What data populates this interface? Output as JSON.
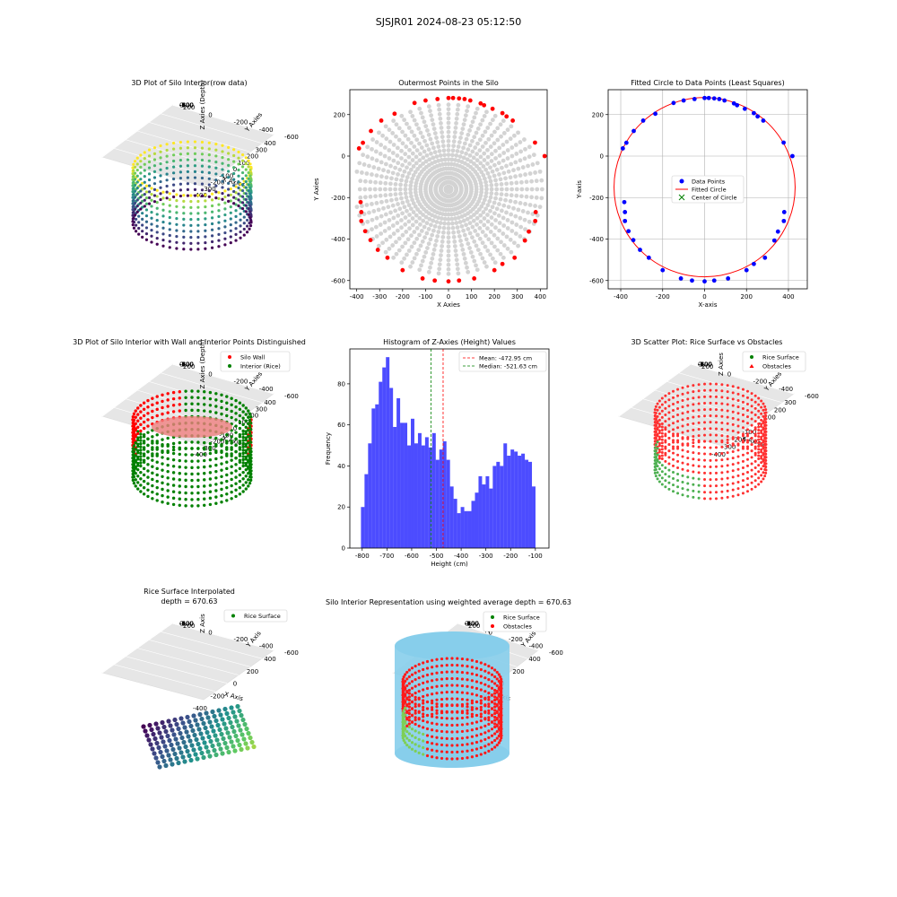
{
  "suptitle": "SJSJR01 2024-08-23 05:12:50",
  "chart_data": [
    {
      "type": "scatter3d",
      "title": "3D Plot of Silo Interior(row data)",
      "xlabel": "X Axies",
      "ylabel": "Y Axies",
      "zlabel": "Z Axies (Depth)",
      "x_ticks": [
        "-400",
        "-300",
        "-200",
        "-100",
        "0",
        "100",
        "200",
        "300",
        "400"
      ],
      "y_ticks": [
        "-600",
        "-400",
        "-200",
        "0",
        "200"
      ],
      "z_ticks": [
        "0",
        "-100",
        "-200",
        "-300",
        "-400",
        "-500",
        "-600",
        "-700",
        "-800"
      ],
      "colormap": "viridis"
    },
    {
      "type": "scatter",
      "title": "Outermost Points in the Silo",
      "xlabel": "X Axies",
      "ylabel": "Y Axies",
      "xlim": [
        -430,
        430
      ],
      "ylim": [
        -640,
        320
      ],
      "x_ticks": [
        -400,
        -300,
        -200,
        -100,
        0,
        100,
        200,
        300,
        400
      ],
      "y_ticks": [
        -600,
        -400,
        -200,
        0,
        200
      ],
      "colors": {
        "interior": "#d3d3d3",
        "outermost": "#ff0000"
      },
      "outermost_points": [
        [
          -390,
          37
        ],
        [
          -373,
          64
        ],
        [
          -338,
          121
        ],
        [
          -293,
          171
        ],
        [
          -235,
          204
        ],
        [
          -148,
          256
        ],
        [
          -100,
          268
        ],
        [
          -48,
          275
        ],
        [
          0,
          280
        ],
        [
          20,
          280
        ],
        [
          46,
          278
        ],
        [
          70,
          275
        ],
        [
          95,
          268
        ],
        [
          140,
          254
        ],
        [
          155,
          245
        ],
        [
          192,
          228
        ],
        [
          235,
          207
        ],
        [
          253,
          191
        ],
        [
          280,
          171
        ],
        [
          377,
          65
        ],
        [
          419,
          0
        ],
        [
          -383,
          -222
        ],
        [
          -380,
          -270
        ],
        [
          -380,
          -313
        ],
        [
          -363,
          -362
        ],
        [
          -340,
          -405
        ],
        [
          -308,
          -452
        ],
        [
          -266,
          -490
        ],
        [
          -200,
          -550
        ],
        [
          -113,
          -590
        ],
        [
          -60,
          -600
        ],
        [
          0,
          -604
        ],
        [
          46,
          -600
        ],
        [
          112,
          -590
        ],
        [
          200,
          -550
        ],
        [
          235,
          -520
        ],
        [
          288,
          -490
        ],
        [
          333,
          -407
        ],
        [
          350,
          -364
        ],
        [
          378,
          -313
        ],
        [
          380,
          -270
        ]
      ]
    },
    {
      "type": "scatter",
      "title": "Fitted Circle to Data Points (Least Squares)",
      "xlabel": "X-axis",
      "ylabel": "Y-axis",
      "xlim": [
        -460,
        490
      ],
      "ylim": [
        -640,
        320
      ],
      "x_ticks": [
        -400,
        -200,
        0,
        200,
        400
      ],
      "y_ticks": [
        -600,
        -400,
        -200,
        0,
        200
      ],
      "grid": true,
      "legend": [
        "Data Points",
        "Fitted Circle",
        "Center of Circle"
      ],
      "legend_position": "center",
      "circle": {
        "cx": 0,
        "cy": -150,
        "r": 432
      },
      "colors": {
        "points": "#0000ff",
        "circle": "#ff0000",
        "center": "#008000"
      },
      "points": [
        [
          -390,
          37
        ],
        [
          -373,
          64
        ],
        [
          -338,
          121
        ],
        [
          -293,
          171
        ],
        [
          -235,
          204
        ],
        [
          -148,
          256
        ],
        [
          -100,
          268
        ],
        [
          -48,
          275
        ],
        [
          0,
          280
        ],
        [
          20,
          280
        ],
        [
          46,
          278
        ],
        [
          70,
          275
        ],
        [
          95,
          268
        ],
        [
          140,
          254
        ],
        [
          155,
          245
        ],
        [
          192,
          228
        ],
        [
          235,
          207
        ],
        [
          253,
          191
        ],
        [
          280,
          171
        ],
        [
          377,
          65
        ],
        [
          419,
          0
        ],
        [
          -383,
          -222
        ],
        [
          -380,
          -270
        ],
        [
          -380,
          -313
        ],
        [
          -363,
          -362
        ],
        [
          -340,
          -405
        ],
        [
          -308,
          -452
        ],
        [
          -266,
          -490
        ],
        [
          -200,
          -550
        ],
        [
          -113,
          -590
        ],
        [
          -60,
          -600
        ],
        [
          0,
          -604
        ],
        [
          46,
          -600
        ],
        [
          112,
          -590
        ],
        [
          200,
          -550
        ],
        [
          235,
          -520
        ],
        [
          288,
          -490
        ],
        [
          333,
          -407
        ],
        [
          350,
          -364
        ],
        [
          378,
          -313
        ],
        [
          380,
          -270
        ]
      ]
    },
    {
      "type": "scatter3d",
      "title": "3D Plot of Silo Interior with Wall and Interior Points Distinguished",
      "xlabel": "X Axies",
      "ylabel": "Y Axies",
      "zlabel": "Z Axies (Depth)",
      "x_ticks": [
        "-400",
        "-300",
        "-200",
        "-100",
        "0",
        "100",
        "200",
        "300",
        "400"
      ],
      "y_ticks": [
        "-600",
        "-400",
        "-200",
        "0",
        "200"
      ],
      "z_ticks": [
        "0",
        "-100",
        "-200",
        "-300",
        "-400",
        "-500",
        "-600",
        "-700",
        "-800"
      ],
      "legend": [
        "Silo Wall",
        "Interior (Rice)"
      ],
      "legend_position": "upper right",
      "colors": {
        "wall": "#ff0000",
        "interior": "#008000"
      }
    },
    {
      "type": "bar",
      "title": "Histogram of Z-Axies (Height) Values",
      "xlabel": "Height (cm)",
      "ylabel": "Frequency",
      "xlim": [
        -850,
        -45
      ],
      "ylim": [
        0,
        97
      ],
      "x_ticks": [
        -800,
        -700,
        -600,
        -500,
        -400,
        -300,
        -200,
        -100
      ],
      "y_ticks": [
        0,
        20,
        40,
        60,
        80
      ],
      "bin_start": -805,
      "bin_width": 14.4,
      "values": [
        20,
        36,
        51,
        68,
        70,
        81,
        88,
        93,
        78,
        59,
        73,
        61,
        61,
        50,
        63,
        51,
        56,
        50,
        54,
        49,
        56,
        43,
        48,
        52,
        43,
        30,
        24,
        17,
        20,
        18,
        18,
        23,
        27,
        35,
        31,
        35,
        29,
        40,
        42,
        40,
        51,
        45,
        48,
        47,
        45,
        46,
        43,
        42,
        30
      ],
      "color": "#0000ff",
      "lines": [
        {
          "label": "Mean: -472.95 cm",
          "value": -472.95,
          "color": "#ff0000"
        },
        {
          "label": "Median: -521.63 cm",
          "value": -521.63,
          "color": "#008000"
        }
      ],
      "legend_position": "upper right"
    },
    {
      "type": "scatter3d",
      "title": "3D Scatter Plot: Rice Surface vs Obstacles",
      "xlabel": "X Axies",
      "ylabel": "Y Axies",
      "zlabel": "Z Axies",
      "x_ticks": [
        "-400",
        "-300",
        "-200",
        "-100",
        "0",
        "100",
        "200",
        "300"
      ],
      "y_ticks": [
        "-600",
        "-400",
        "-200",
        "0",
        "200"
      ],
      "z_ticks": [
        "0",
        "-100",
        "-200",
        "-300",
        "-400",
        "-500",
        "-600",
        "-700",
        "-800"
      ],
      "legend": [
        "Rice Surface",
        "Obstacles"
      ],
      "legend_position": "upper right",
      "colors": {
        "rice": "#008000",
        "obstacles": "#ff0000"
      }
    },
    {
      "type": "surface3d",
      "title": "Rice Surface Interpolated",
      "subtitle": "depth = 670.63",
      "xlabel": "X Axis",
      "ylabel": "Y Axis",
      "zlabel": "Z Axis",
      "x_ticks": [
        "-400",
        "-200",
        "0",
        "200",
        "400"
      ],
      "y_ticks": [
        "-600",
        "-400",
        "-200",
        "0",
        "200"
      ],
      "z_ticks": [
        "0",
        "-100",
        "-200",
        "-300",
        "-400",
        "-500",
        "-600"
      ],
      "legend": [
        "Rice Surface"
      ],
      "legend_position": "upper right",
      "colormap": "viridis"
    },
    {
      "type": "surface3d",
      "title": "Silo Interior Representation using weighted average depth = 670.63",
      "xlabel": "X Axis",
      "ylabel": "Y Axis",
      "zlabel": "Z Axis",
      "x_ticks": [
        "-400",
        "-200",
        "0",
        "200",
        "400"
      ],
      "y_ticks": [
        "-600",
        "-400",
        "-200",
        "0",
        "200"
      ],
      "z_ticks": [
        "0",
        "-100",
        "-200",
        "-300",
        "-400",
        "-500",
        "-600",
        "-700",
        "-800"
      ],
      "legend": [
        "Rice Surface",
        "Obstacles"
      ],
      "legend_position": "upper center",
      "colors": {
        "rice": "#008000",
        "obstacles": "#ff0000",
        "wall": "#87ceeb"
      }
    }
  ]
}
